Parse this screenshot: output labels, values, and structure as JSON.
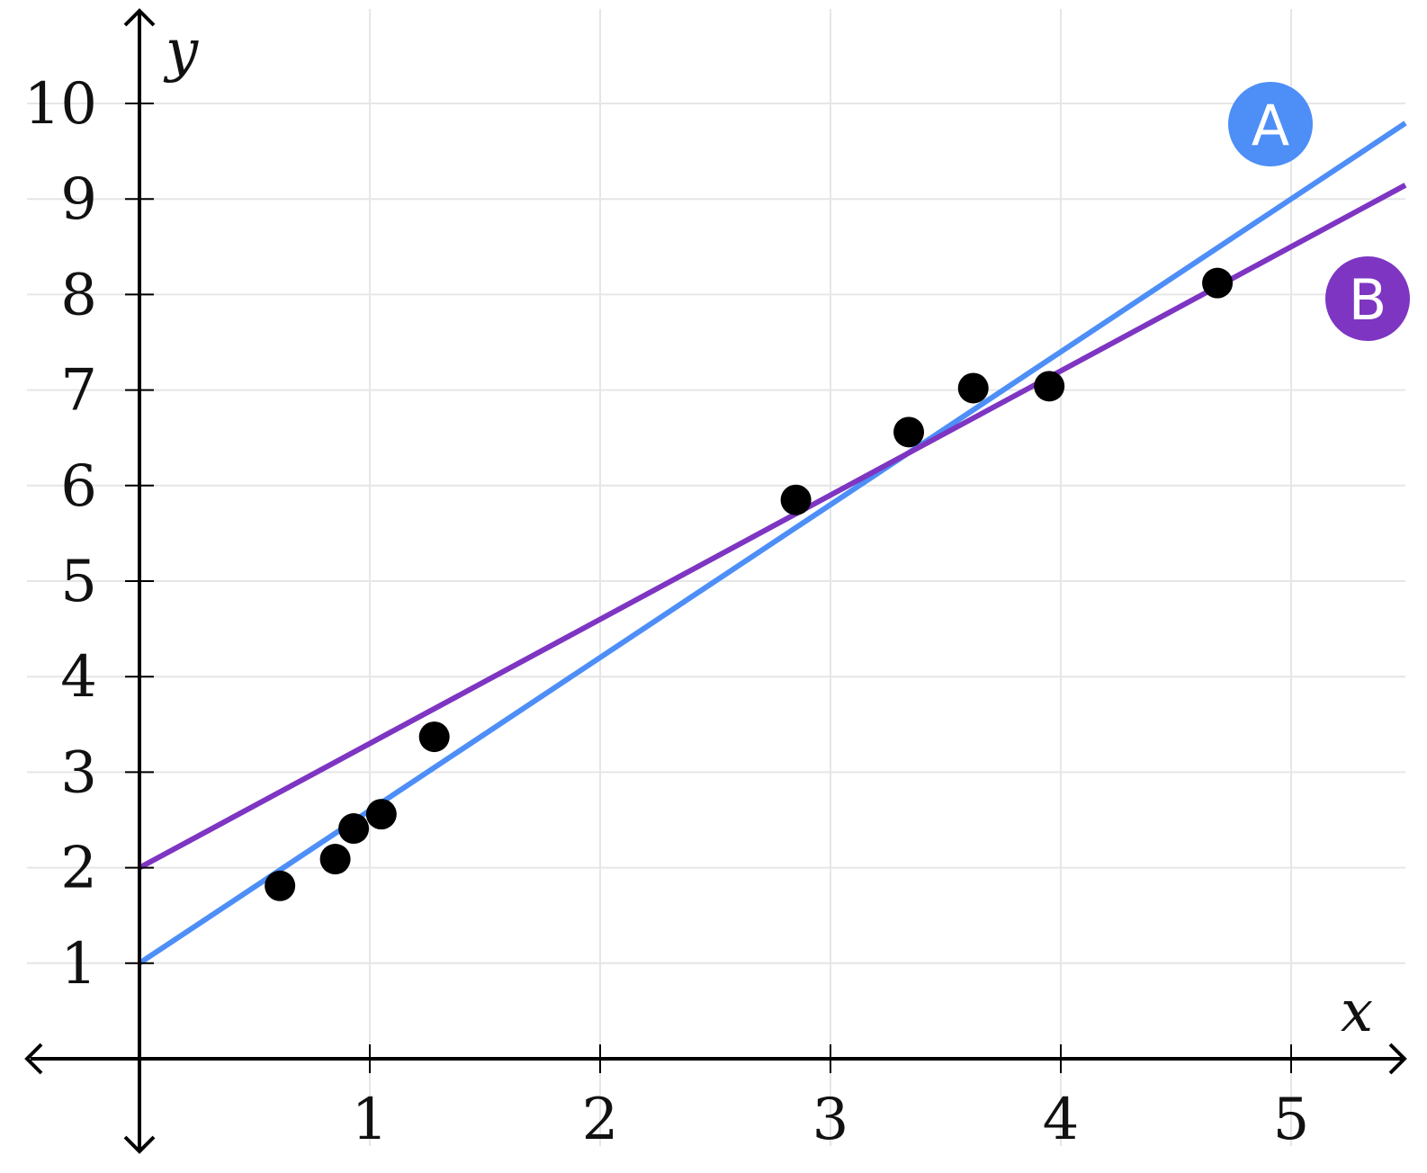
{
  "chart_data": {
    "type": "scatter",
    "title": "",
    "xlabel": "x",
    "ylabel": "y",
    "xlim": [
      -0.5,
      5.5
    ],
    "ylim": [
      -0.9,
      10.96
    ],
    "x_ticks": [
      {
        "value": 1,
        "label": "1"
      },
      {
        "value": 2,
        "label": "2"
      },
      {
        "value": 3,
        "label": "3"
      },
      {
        "value": 4,
        "label": "4"
      },
      {
        "value": 5,
        "label": "5"
      }
    ],
    "y_ticks": [
      {
        "value": 1,
        "label": "1"
      },
      {
        "value": 2,
        "label": "2"
      },
      {
        "value": 3,
        "label": "3"
      },
      {
        "value": 4,
        "label": "4"
      },
      {
        "value": 5,
        "label": "5"
      },
      {
        "value": 6,
        "label": "6"
      },
      {
        "value": 7,
        "label": "7"
      },
      {
        "value": 8,
        "label": "8"
      },
      {
        "value": 9,
        "label": "9"
      },
      {
        "value": 10,
        "label": "10"
      }
    ],
    "grid": true,
    "points": [
      {
        "x": 0.61,
        "y": 1.81
      },
      {
        "x": 0.85,
        "y": 2.09
      },
      {
        "x": 0.93,
        "y": 2.41
      },
      {
        "x": 1.05,
        "y": 2.56
      },
      {
        "x": 1.28,
        "y": 3.37
      },
      {
        "x": 2.85,
        "y": 5.85
      },
      {
        "x": 3.34,
        "y": 6.56
      },
      {
        "x": 3.62,
        "y": 7.02
      },
      {
        "x": 3.95,
        "y": 7.04
      },
      {
        "x": 4.68,
        "y": 8.12
      }
    ],
    "lines": [
      {
        "label": "A",
        "intercept": 1,
        "slope": 1.6,
        "color": "#4d8ef7"
      },
      {
        "label": "B",
        "intercept": 2,
        "slope": 1.3,
        "color": "#7e35c2"
      }
    ]
  }
}
